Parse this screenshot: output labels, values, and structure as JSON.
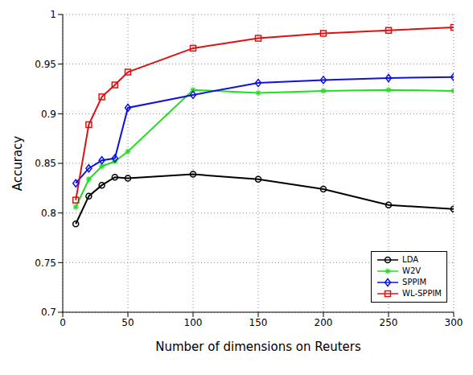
{
  "chart_data": {
    "type": "line",
    "x_label": "Number of dimensions on Reuters",
    "y_label": "Accuracy",
    "x": [
      10,
      20,
      30,
      40,
      50,
      100,
      150,
      200,
      250,
      300
    ],
    "series": [
      {
        "name": "LDA",
        "color": "#000000",
        "marker": "circle",
        "values": [
          0.789,
          0.817,
          0.828,
          0.836,
          0.835,
          0.839,
          0.834,
          0.824,
          0.808,
          0.804
        ]
      },
      {
        "name": "W2V",
        "color": "#22dd22",
        "marker": "asterisk",
        "values": [
          0.806,
          0.834,
          0.847,
          0.852,
          0.862,
          0.924,
          0.921,
          0.923,
          0.924,
          0.923
        ]
      },
      {
        "name": "SPPIM",
        "color": "#1010e0",
        "marker": "diamond",
        "values": [
          0.83,
          0.845,
          0.853,
          0.855,
          0.906,
          0.919,
          0.931,
          0.934,
          0.936,
          0.937
        ]
      },
      {
        "name": "WL-SPPIM",
        "color": "#e01010",
        "marker": "square",
        "values": [
          0.813,
          0.889,
          0.917,
          0.929,
          0.942,
          0.966,
          0.976,
          0.981,
          0.984,
          0.987
        ]
      }
    ],
    "xlim": [
      0,
      300
    ],
    "xticks": [
      0,
      50,
      100,
      150,
      200,
      250,
      300
    ],
    "ylim": [
      0.7,
      1
    ],
    "yticks": [
      0.7,
      0.75,
      0.8,
      0.85,
      0.9,
      0.95,
      1
    ],
    "grid": true,
    "legend": "lower right"
  }
}
